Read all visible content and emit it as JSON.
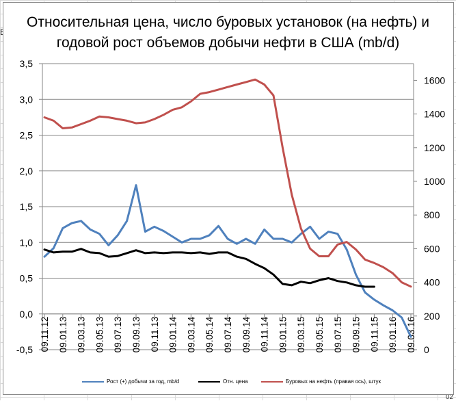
{
  "chart_title_line1": "Относительная цена, число буровых установок (на нефть) и",
  "chart_title_line2": "годовой рост объемов добычи нефти в США (mb/d)",
  "legend": [
    {
      "label": "Рост (+) добычи за год, mb/d",
      "color": "#4f81bd"
    },
    {
      "label": "Отн. цена",
      "color": "#000000"
    },
    {
      "label": "Буровых на нефть (правая ось), штук",
      "color": "#c0504d"
    }
  ],
  "left_axis_ticks": [
    "3,5",
    "3,0",
    "2,5",
    "2,0",
    "1,5",
    "1,0",
    "0,5",
    "0,0",
    "-0,5"
  ],
  "right_axis_ticks": [
    "1600",
    "1400",
    "1200",
    "1000",
    "800",
    "600",
    "400",
    "200",
    "0"
  ],
  "x_axis_ticks": [
    "09.11.12",
    "09.01.13",
    "09.03.13",
    "09.05.13",
    "09.07.13",
    "09.09.13",
    "09.11.13",
    "09.01.14",
    "09.03.14",
    "09.05.14",
    "09.07.14",
    "09.09.14",
    "09.11.14",
    "09.01.15",
    "09.03.15",
    "09.05.15",
    "09.07.15",
    "09.09.15",
    "09.11.15",
    "09.01.16",
    "09.03.16"
  ],
  "sheet_fragments": {
    "left": "В",
    "bottom_right": "02"
  },
  "chart_data": {
    "type": "line",
    "title": "Относительная цена, число буровых установок (на нефть) и годовой рост объемов добычи нефти в США (mb/d)",
    "xlabel": "",
    "ylabel": "",
    "y2label": "Буровых на нефть (правая ось), штук",
    "ylim": [
      -0.5,
      3.5
    ],
    "y2lim": [
      0,
      1800
    ],
    "grid": true,
    "legend_position": "bottom",
    "x": [
      "09.11.12",
      "09.12.12",
      "09.01.13",
      "09.02.13",
      "09.03.13",
      "09.04.13",
      "09.05.13",
      "09.06.13",
      "09.07.13",
      "09.08.13",
      "09.09.13",
      "09.10.13",
      "09.11.13",
      "09.12.13",
      "09.01.14",
      "09.02.14",
      "09.03.14",
      "09.04.14",
      "09.05.14",
      "09.06.14",
      "09.07.14",
      "09.08.14",
      "09.09.14",
      "09.10.14",
      "09.11.14",
      "09.12.14",
      "09.01.15",
      "09.02.15",
      "09.03.15",
      "09.04.15",
      "09.05.15",
      "09.06.15",
      "09.07.15",
      "09.08.15",
      "09.09.15",
      "09.10.15",
      "09.11.15",
      "09.12.15",
      "09.01.16",
      "09.02.16",
      "09.03.16"
    ],
    "series": [
      {
        "name": "Рост (+) добычи за год, mb/d",
        "axis": "left",
        "color": "#4f81bd",
        "values": [
          0.8,
          0.92,
          1.2,
          1.27,
          1.3,
          1.18,
          1.12,
          0.96,
          1.1,
          1.3,
          1.8,
          1.15,
          1.22,
          1.16,
          1.08,
          1.0,
          1.05,
          1.05,
          1.1,
          1.23,
          1.05,
          0.98,
          1.05,
          0.98,
          1.18,
          1.05,
          1.05,
          1.0,
          1.12,
          1.22,
          1.05,
          1.15,
          1.12,
          0.9,
          0.55,
          0.3,
          0.2,
          0.12,
          0.05,
          -0.05,
          -0.32
        ]
      },
      {
        "name": "Отн. цена",
        "axis": "left",
        "color": "#000000",
        "values": [
          0.9,
          0.86,
          0.87,
          0.87,
          0.91,
          0.86,
          0.85,
          0.8,
          0.81,
          0.85,
          0.89,
          0.85,
          0.86,
          0.85,
          0.86,
          0.86,
          0.85,
          0.86,
          0.84,
          0.86,
          0.86,
          0.8,
          0.77,
          0.7,
          0.64,
          0.55,
          0.42,
          0.4,
          0.45,
          0.43,
          0.47,
          0.5,
          0.46,
          0.44,
          0.4,
          0.38,
          0.38,
          null,
          null,
          null,
          null
        ]
      },
      {
        "name": "Буровых на нефть (правая ось), штук",
        "axis": "right",
        "color": "#c0504d",
        "values": [
          1380,
          1360,
          1315,
          1320,
          1340,
          1360,
          1385,
          1380,
          1370,
          1360,
          1345,
          1350,
          1370,
          1395,
          1425,
          1440,
          1475,
          1520,
          1530,
          1545,
          1560,
          1575,
          1590,
          1605,
          1575,
          1510,
          1200,
          920,
          720,
          600,
          555,
          555,
          625,
          640,
          595,
          535,
          515,
          490,
          455,
          400,
          375
        ]
      }
    ]
  }
}
